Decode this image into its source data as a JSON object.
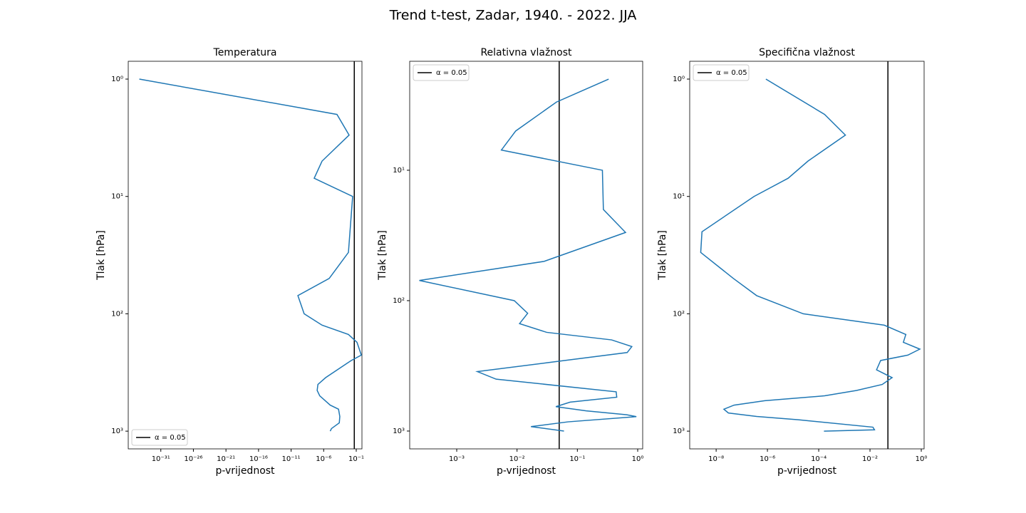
{
  "title": "Trend t-test, Zadar, 1940. - 2022. JJA",
  "chart_data": [
    {
      "type": "line",
      "title": "Temperatura",
      "x_label": "p-vrijednost",
      "y_label": "Tlak [hPa]",
      "x_log": true,
      "y_log": true,
      "xlim": [
        1e-36,
        0.75
      ],
      "ylim": [
        1416,
        0.705
      ],
      "xticks": [
        {
          "value": 1e-31,
          "label": "10⁻³¹"
        },
        {
          "value": 1e-26,
          "label": "10⁻²⁶"
        },
        {
          "value": 1e-21,
          "label": "10⁻²¹"
        },
        {
          "value": 1e-16,
          "label": "10⁻¹⁶"
        },
        {
          "value": 1e-11,
          "label": "10⁻¹¹"
        },
        {
          "value": 1e-06,
          "label": "10⁻⁶"
        },
        {
          "value": 0.1,
          "label": "10⁻¹"
        }
      ],
      "yticks": [
        {
          "value": 1,
          "label": "10⁰"
        },
        {
          "value": 10,
          "label": "10¹"
        },
        {
          "value": 100,
          "label": "10²"
        },
        {
          "value": 1000,
          "label": "10³"
        }
      ],
      "series": [
        {
          "color": "#1f77b4",
          "y": [
            1,
            2,
            3,
            5,
            7,
            10,
            30,
            50,
            70,
            100,
            125,
            150,
            175,
            225,
            250,
            350,
            400,
            450,
            500,
            600,
            650,
            750,
            850,
            950,
            1000
          ],
          "values": [
            5e-35,
            0.00011,
            0.008,
            5.6e-07,
            3.5e-08,
            0.028,
            0.0063,
            7e-06,
            1.1e-10,
            1e-09,
            5.6e-07,
            0.0063,
            0.13,
            0.6,
            0.017,
            2e-06,
            1.3e-07,
            1e-07,
            2.5e-07,
            1e-05,
            0.00019,
            0.0003,
            0.00025,
            1.6e-05,
            1e-05
          ]
        }
      ],
      "vline": {
        "value": 0.05,
        "label": "α = 0.05",
        "color": "#000000"
      },
      "legend": "lower left"
    },
    {
      "type": "line",
      "title": "Relativna vlažnost",
      "x_label": "p-vrijednost",
      "y_label": "Tlak [hPa]",
      "x_log": true,
      "y_log": true,
      "xlim": [
        0.000166,
        1.21
      ],
      "ylim": [
        1370,
        1.46
      ],
      "xticks": [
        {
          "value": 0.001,
          "label": "10⁻³"
        },
        {
          "value": 0.01,
          "label": "10⁻²"
        },
        {
          "value": 0.1,
          "label": "10⁻¹"
        },
        {
          "value": 1,
          "label": "10⁰"
        }
      ],
      "yticks": [
        {
          "value": 10,
          "label": "10¹"
        },
        {
          "value": 100,
          "label": "10²"
        },
        {
          "value": 1000,
          "label": "10³"
        }
      ],
      "series": [
        {
          "color": "#1f77b4",
          "y": [
            2,
            3,
            5,
            7,
            10,
            20,
            30,
            50,
            70,
            100,
            125,
            150,
            175,
            200,
            225,
            250,
            350,
            400,
            500,
            550,
            600,
            650,
            700,
            750,
            775,
            850,
            925,
            1000
          ],
          "values": [
            0.33,
            0.045,
            0.0095,
            0.0055,
            0.26,
            0.27,
            0.63,
            0.028,
            0.00024,
            0.009,
            0.015,
            0.011,
            0.031,
            0.37,
            0.8,
            0.67,
            0.0022,
            0.0045,
            0.44,
            0.45,
            0.076,
            0.044,
            0.14,
            0.66,
            0.95,
            0.07,
            0.017,
            0.06
          ]
        }
      ],
      "vline": {
        "value": 0.05,
        "label": "α = 0.05",
        "color": "#000000"
      },
      "legend": "upper left"
    },
    {
      "type": "line",
      "title": "Specifična vlažnost",
      "x_label": "p-vrijednost",
      "y_label": "Tlak [hPa]",
      "x_log": true,
      "y_log": true,
      "xlim": [
        9.3e-10,
        1.29
      ],
      "ylim": [
        1416,
        0.705
      ],
      "xticks": [
        {
          "value": 1e-08,
          "label": "10⁻⁸"
        },
        {
          "value": 1e-06,
          "label": "10⁻⁶"
        },
        {
          "value": 0.0001,
          "label": "10⁻⁴"
        },
        {
          "value": 0.01,
          "label": "10⁻²"
        },
        {
          "value": 1,
          "label": "10⁰"
        }
      ],
      "yticks": [
        {
          "value": 1,
          "label": "10⁰"
        },
        {
          "value": 10,
          "label": "10¹"
        },
        {
          "value": 100,
          "label": "10²"
        },
        {
          "value": 1000,
          "label": "10³"
        }
      ],
      "series": [
        {
          "color": "#1f77b4",
          "y": [
            1,
            2,
            3,
            5,
            7,
            10,
            20,
            30,
            50,
            70,
            100,
            125,
            150,
            175,
            200,
            225,
            250,
            300,
            350,
            400,
            450,
            500,
            550,
            600,
            650,
            700,
            750,
            800,
            925,
            975,
            1000
          ],
          "values": [
            8.7e-07,
            0.00017,
            0.0011,
            3.8e-05,
            6.4e-06,
            3e-07,
            2.8e-09,
            2.5e-09,
            4.7e-08,
            3.8e-07,
            2.5e-05,
            0.036,
            0.25,
            0.2,
            0.88,
            0.3,
            0.026,
            0.018,
            0.073,
            0.03,
            0.003,
            0.00017,
            7.9e-07,
            5e-08,
            2e-08,
            3e-08,
            3.8e-07,
            1.6e-05,
            0.013,
            0.015,
            0.00016
          ]
        }
      ],
      "vline": {
        "value": 0.05,
        "label": "α = 0.05",
        "color": "#000000"
      },
      "legend": "upper left"
    }
  ]
}
